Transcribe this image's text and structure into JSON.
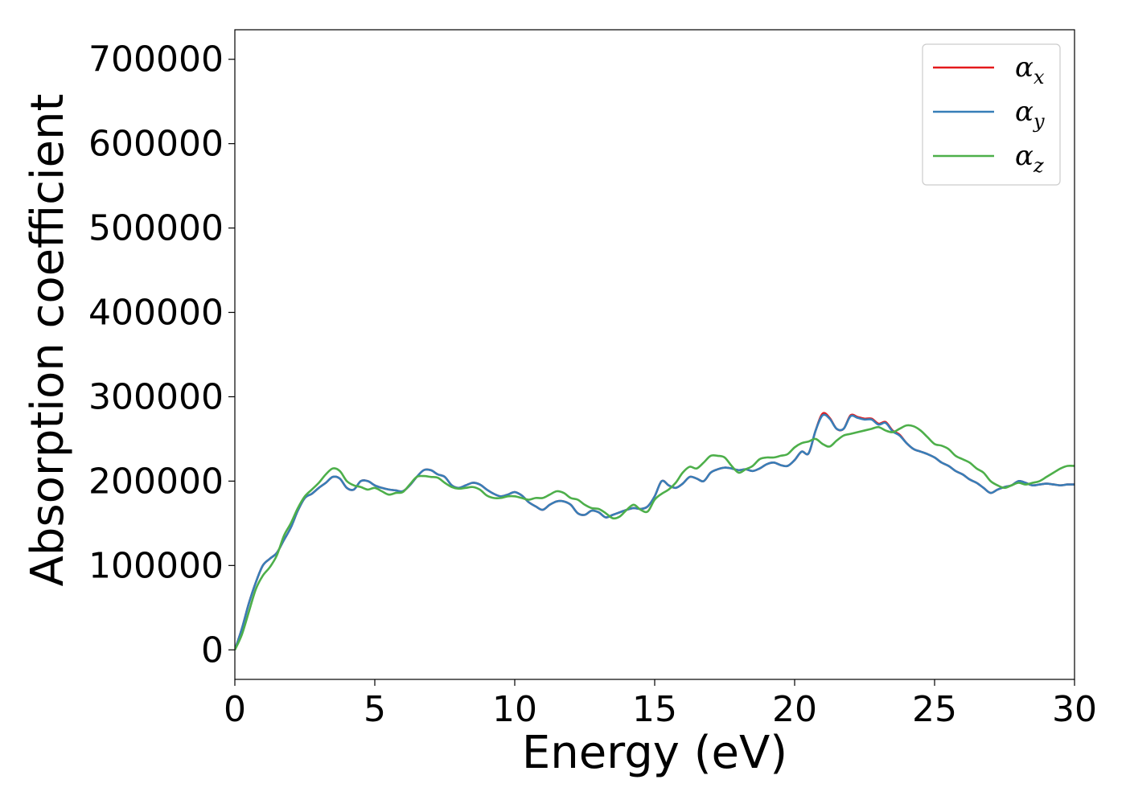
{
  "chart_data": {
    "type": "line",
    "xlabel": "Energy (eV)",
    "ylabel": "Absorption coefficient",
    "xlim": [
      0,
      30
    ],
    "ylim": [
      -35000,
      735000
    ],
    "xticks": [
      0,
      5,
      10,
      15,
      20,
      25,
      30
    ],
    "yticks": [
      0,
      100000,
      200000,
      300000,
      400000,
      500000,
      600000,
      700000
    ],
    "grid": false,
    "legend_position": "top-right",
    "series": [
      {
        "name": "α",
        "subscript": "x",
        "color": "#e41a1c",
        "x": [
          0,
          0.25,
          0.5,
          0.75,
          1,
          1.25,
          1.5,
          1.75,
          2,
          2.25,
          2.5,
          2.75,
          3,
          3.25,
          3.5,
          3.75,
          4,
          4.25,
          4.5,
          4.75,
          5,
          5.25,
          5.5,
          5.75,
          6,
          6.25,
          6.5,
          6.75,
          7,
          7.25,
          7.5,
          7.75,
          8,
          8.25,
          8.5,
          8.75,
          9,
          9.25,
          9.5,
          9.75,
          10,
          10.25,
          10.5,
          10.75,
          11,
          11.25,
          11.5,
          11.75,
          12,
          12.25,
          12.5,
          12.75,
          13,
          13.25,
          13.5,
          13.75,
          14,
          14.25,
          14.5,
          14.75,
          15,
          15.25,
          15.5,
          15.75,
          16,
          16.25,
          16.5,
          16.75,
          17,
          17.25,
          17.5,
          17.75,
          18,
          18.25,
          18.5,
          18.75,
          19,
          19.25,
          19.5,
          19.75,
          20,
          20.25,
          20.5,
          20.75,
          21,
          21.25,
          21.5,
          21.75,
          22,
          22.25,
          22.5,
          22.75,
          23,
          23.25,
          23.5,
          23.75,
          24,
          24.25,
          24.5,
          24.75,
          25,
          25.25,
          25.5,
          25.75,
          26,
          26.25,
          26.5,
          26.75,
          27,
          27.25,
          27.5,
          27.75,
          28,
          28.25,
          28.5,
          28.75,
          29,
          29.25,
          29.5,
          29.75,
          30
        ],
        "y": [
          0,
          25000,
          55000,
          80000,
          100000,
          108000,
          115000,
          130000,
          145000,
          165000,
          180000,
          185000,
          192000,
          198000,
          205000,
          203000,
          192000,
          190000,
          200000,
          200000,
          195000,
          192000,
          190000,
          189000,
          188000,
          195000,
          205000,
          213000,
          213000,
          208000,
          205000,
          195000,
          192000,
          195000,
          198000,
          196000,
          190000,
          185000,
          182000,
          184000,
          187000,
          183000,
          175000,
          170000,
          166000,
          172000,
          176000,
          176000,
          172000,
          162000,
          160000,
          165000,
          163000,
          157000,
          160000,
          163000,
          166000,
          168000,
          167000,
          170000,
          182000,
          200000,
          195000,
          192000,
          197000,
          205000,
          203000,
          200000,
          210000,
          214000,
          216000,
          215000,
          213000,
          214000,
          212000,
          215000,
          220000,
          222000,
          219000,
          218000,
          225000,
          235000,
          233000,
          260000,
          280000,
          275000,
          262000,
          262000,
          278000,
          276000,
          274000,
          274000,
          268000,
          270000,
          260000,
          255000,
          245000,
          238000,
          235000,
          232000,
          228000,
          222000,
          218000,
          212000,
          208000,
          202000,
          198000,
          192000,
          186000,
          190000,
          193000,
          195000,
          200000,
          198000,
          195000,
          196000,
          197000,
          196000,
          195000,
          196000,
          196000
        ],
        "smoothing_note": ""
      },
      {
        "name": "α",
        "subscript": "y",
        "color": "#377eb8",
        "x": [
          0,
          0.25,
          0.5,
          0.75,
          1,
          1.25,
          1.5,
          1.75,
          2,
          2.25,
          2.5,
          2.75,
          3,
          3.25,
          3.5,
          3.75,
          4,
          4.25,
          4.5,
          4.75,
          5,
          5.25,
          5.5,
          5.75,
          6,
          6.25,
          6.5,
          6.75,
          7,
          7.25,
          7.5,
          7.75,
          8,
          8.25,
          8.5,
          8.75,
          9,
          9.25,
          9.5,
          9.75,
          10,
          10.25,
          10.5,
          10.75,
          11,
          11.25,
          11.5,
          11.75,
          12,
          12.25,
          12.5,
          12.75,
          13,
          13.25,
          13.5,
          13.75,
          14,
          14.25,
          14.5,
          14.75,
          15,
          15.25,
          15.5,
          15.75,
          16,
          16.25,
          16.5,
          16.75,
          17,
          17.25,
          17.5,
          17.75,
          18,
          18.25,
          18.5,
          18.75,
          19,
          19.25,
          19.5,
          19.75,
          20,
          20.25,
          20.5,
          20.75,
          21,
          21.25,
          21.5,
          21.75,
          22,
          22.25,
          22.5,
          22.75,
          23,
          23.25,
          23.5,
          23.75,
          24,
          24.25,
          24.5,
          24.75,
          25,
          25.25,
          25.5,
          25.75,
          26,
          26.25,
          26.5,
          26.75,
          27,
          27.25,
          27.5,
          27.75,
          28,
          28.25,
          28.5,
          28.75,
          29,
          29.25,
          29.5,
          29.75,
          30
        ],
        "y": [
          0,
          25000,
          55000,
          80000,
          100000,
          108000,
          115000,
          130000,
          145000,
          165000,
          180000,
          185000,
          192000,
          198000,
          205000,
          203000,
          192000,
          190000,
          200000,
          200000,
          195000,
          192000,
          190000,
          189000,
          188000,
          195000,
          205000,
          213000,
          213000,
          208000,
          205000,
          195000,
          192000,
          195000,
          198000,
          196000,
          190000,
          185000,
          182000,
          184000,
          187000,
          183000,
          175000,
          170000,
          166000,
          172000,
          176000,
          176000,
          172000,
          162000,
          160000,
          165000,
          163000,
          157000,
          160000,
          163000,
          166000,
          168000,
          167000,
          170000,
          182000,
          200000,
          195000,
          192000,
          197000,
          205000,
          203000,
          200000,
          210000,
          214000,
          216000,
          215000,
          213000,
          214000,
          212000,
          215000,
          220000,
          222000,
          219000,
          218000,
          225000,
          235000,
          233000,
          260000,
          278000,
          274000,
          262000,
          262000,
          277000,
          275000,
          273000,
          273000,
          267000,
          269000,
          259000,
          254000,
          245000,
          238000,
          235000,
          232000,
          228000,
          222000,
          218000,
          212000,
          208000,
          202000,
          198000,
          192000,
          186000,
          190000,
          193000,
          195000,
          200000,
          198000,
          195000,
          196000,
          197000,
          196000,
          195000,
          196000,
          196000
        ]
      },
      {
        "name": "α",
        "subscript": "z",
        "color": "#4daf4a",
        "x": [
          0,
          0.25,
          0.5,
          0.75,
          1,
          1.25,
          1.5,
          1.75,
          2,
          2.25,
          2.5,
          2.75,
          3,
          3.25,
          3.5,
          3.75,
          4,
          4.25,
          4.5,
          4.75,
          5,
          5.25,
          5.5,
          5.75,
          6,
          6.25,
          6.5,
          6.75,
          7,
          7.25,
          7.5,
          7.75,
          8,
          8.25,
          8.5,
          8.75,
          9,
          9.25,
          9.5,
          9.75,
          10,
          10.25,
          10.5,
          10.75,
          11,
          11.25,
          11.5,
          11.75,
          12,
          12.25,
          12.5,
          12.75,
          13,
          13.25,
          13.5,
          13.75,
          14,
          14.25,
          14.5,
          14.75,
          15,
          15.25,
          15.5,
          15.75,
          16,
          16.25,
          16.5,
          16.75,
          17,
          17.25,
          17.5,
          17.75,
          18,
          18.25,
          18.5,
          18.75,
          19,
          19.25,
          19.5,
          19.75,
          20,
          20.25,
          20.5,
          20.75,
          21,
          21.25,
          21.5,
          21.75,
          22,
          22.25,
          22.5,
          22.75,
          23,
          23.25,
          23.5,
          23.75,
          24,
          24.25,
          24.5,
          24.75,
          25,
          25.25,
          25.5,
          25.75,
          26,
          26.25,
          26.5,
          26.75,
          27,
          27.25,
          27.5,
          27.75,
          28,
          28.25,
          28.5,
          28.75,
          29,
          29.25,
          29.5,
          29.75,
          30
        ],
        "y": [
          0,
          18000,
          45000,
          72000,
          88000,
          98000,
          112000,
          135000,
          150000,
          168000,
          182000,
          190000,
          198000,
          208000,
          215000,
          212000,
          200000,
          195000,
          193000,
          190000,
          192000,
          188000,
          184000,
          186000,
          187000,
          196000,
          205000,
          206000,
          205000,
          204000,
          198000,
          193000,
          191000,
          192000,
          193000,
          190000,
          183000,
          180000,
          180000,
          182000,
          182000,
          180000,
          178000,
          180000,
          180000,
          184000,
          188000,
          186000,
          180000,
          178000,
          172000,
          168000,
          167000,
          162000,
          156000,
          158000,
          166000,
          172000,
          166000,
          164000,
          178000,
          185000,
          190000,
          198000,
          210000,
          217000,
          215000,
          222000,
          230000,
          230000,
          228000,
          218000,
          210000,
          214000,
          218000,
          226000,
          228000,
          228000,
          230000,
          232000,
          240000,
          245000,
          247000,
          250000,
          244000,
          241000,
          248000,
          254000,
          256000,
          258000,
          260000,
          262000,
          264000,
          260000,
          258000,
          262000,
          266000,
          265000,
          260000,
          252000,
          244000,
          242000,
          238000,
          230000,
          226000,
          222000,
          215000,
          210000,
          200000,
          195000,
          192000,
          195000,
          198000,
          196000,
          198000,
          200000,
          205000,
          210000,
          215000,
          218000,
          218000
        ]
      }
    ]
  }
}
